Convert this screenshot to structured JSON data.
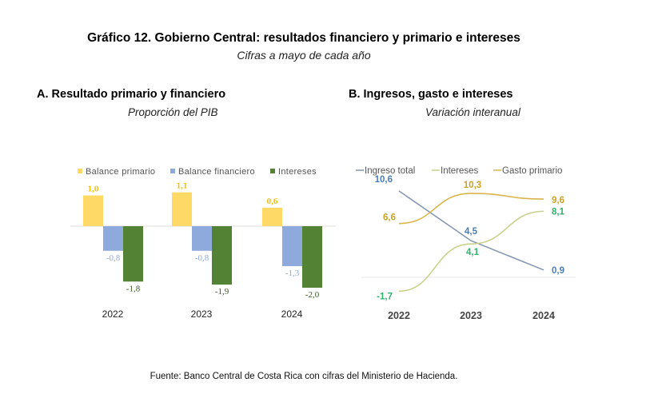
{
  "header": {
    "title": "Gráfico 12. Gobierno Central: resultados financiero y primario e intereses",
    "subtitle": "Cifras a mayo de cada año"
  },
  "footer": {
    "source": "Fuente: Banco Central de Costa Rica con cifras del Ministerio de Hacienda."
  },
  "chart_data": [
    {
      "type": "bar",
      "title": "A.   Resultado primario y financiero",
      "subtitle": "Proporción del PIB",
      "categories": [
        "2022",
        "2023",
        "2024"
      ],
      "legend_position": "top",
      "ylim": [
        -2.2,
        1.3
      ],
      "series": [
        {
          "name": "Balance primario",
          "color": "#FFD966",
          "label_color": "#F2C200",
          "values": [
            1.0,
            1.1,
            0.6
          ],
          "labels": [
            "1,0",
            "1,1",
            "0,6"
          ]
        },
        {
          "name": "Balance financiero",
          "color": "#8EA9DB",
          "label_color": "#8EA9DB",
          "values": [
            -0.8,
            -0.8,
            -1.3
          ],
          "labels": [
            "-0,8",
            "-0,8",
            "-1,3"
          ]
        },
        {
          "name": "Intereses",
          "color": "#548235",
          "label_color": "#385723",
          "values": [
            -1.8,
            -1.9,
            -2.0
          ],
          "labels": [
            "-1,8",
            "-1,9",
            "-2,0"
          ]
        }
      ]
    },
    {
      "type": "line",
      "title": "B. Ingresos, gasto e intereses",
      "subtitle": "Variación interanual",
      "categories": [
        "2022",
        "2023",
        "2024"
      ],
      "legend_position": "top",
      "ylim": [
        -2,
        11
      ],
      "series": [
        {
          "name": "Ingreso total",
          "color": "#8496B0",
          "label_color": "#4A7DB5",
          "values": [
            10.6,
            4.5,
            0.9
          ],
          "labels": [
            "10,6",
            "4,5",
            "0,9"
          ]
        },
        {
          "name": "Intereses",
          "color": "#C9D18C",
          "label_color": "#2EB36A",
          "values": [
            -1.7,
            4.1,
            8.1
          ],
          "labels": [
            "-1,7",
            "4,1",
            "8,1"
          ]
        },
        {
          "name": "Gasto primario",
          "color": "#D9B54A",
          "label_color": "#C9A227",
          "values": [
            6.6,
            10.3,
            9.6
          ],
          "labels": [
            "6,6",
            "10,3",
            "9,6"
          ]
        }
      ]
    }
  ]
}
